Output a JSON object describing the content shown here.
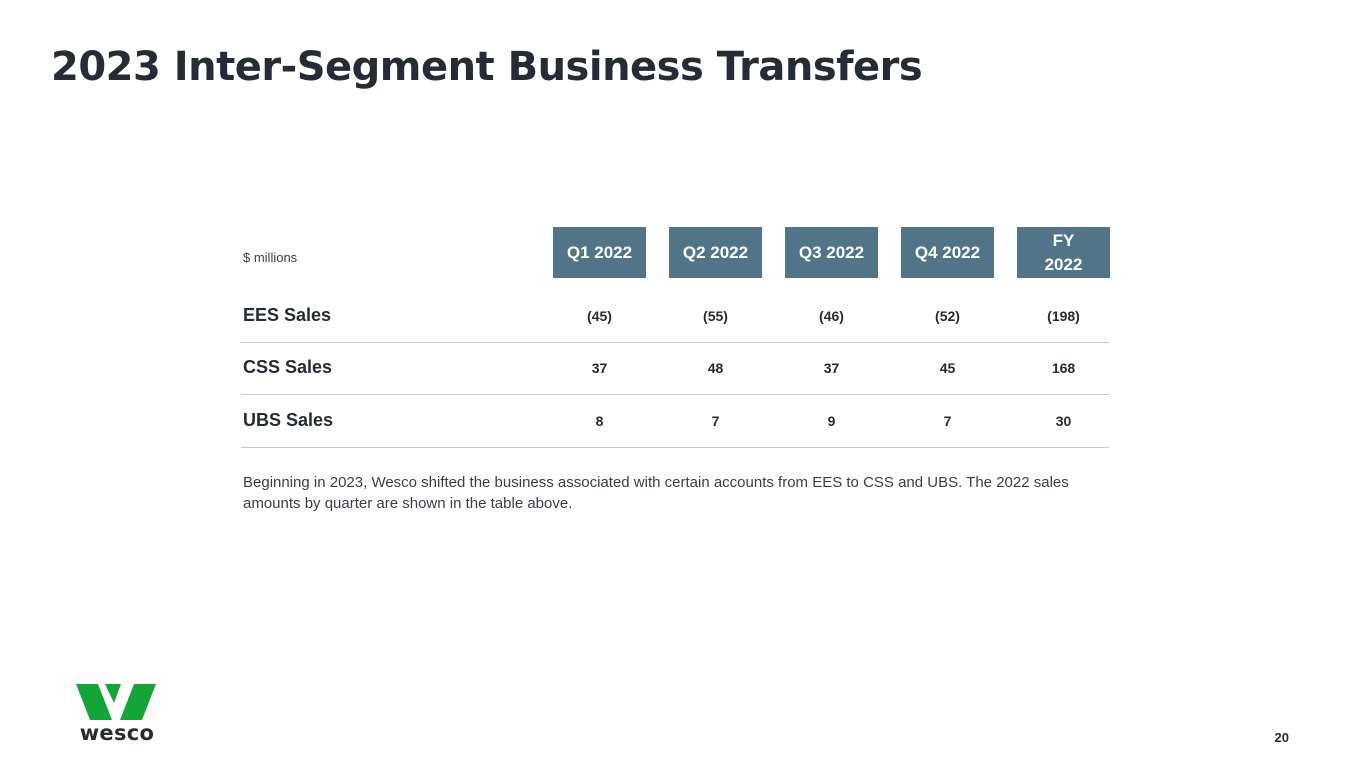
{
  "title": "2023 Inter-Segment Business Transfers",
  "units_label": "$ millions",
  "table": {
    "columns": [
      {
        "label": "Q1 2022"
      },
      {
        "label": "Q2 2022"
      },
      {
        "label": "Q3 2022"
      },
      {
        "label": "Q4 2022"
      },
      {
        "label_line1": "FY",
        "label_line2": "2022"
      }
    ],
    "rows": [
      {
        "label": "EES Sales",
        "values": [
          "(45)",
          "(55)",
          "(46)",
          "(52)",
          "(198)"
        ]
      },
      {
        "label": "CSS Sales",
        "values": [
          "37",
          "48",
          "37",
          "45",
          "168"
        ]
      },
      {
        "label": "UBS Sales",
        "values": [
          "8",
          "7",
          "9",
          "7",
          "30"
        ]
      }
    ]
  },
  "footnote": "Beginning in 2023, Wesco shifted the business associated with certain accounts from EES to CSS and UBS. The 2022 sales amounts by quarter are shown in the table above.",
  "logo": {
    "text": "wesco",
    "mark_color": "#13a538"
  },
  "page_number": "20",
  "colors": {
    "header_fill": "#527488",
    "text": "#262b35",
    "divider": "#c9c9c9"
  }
}
